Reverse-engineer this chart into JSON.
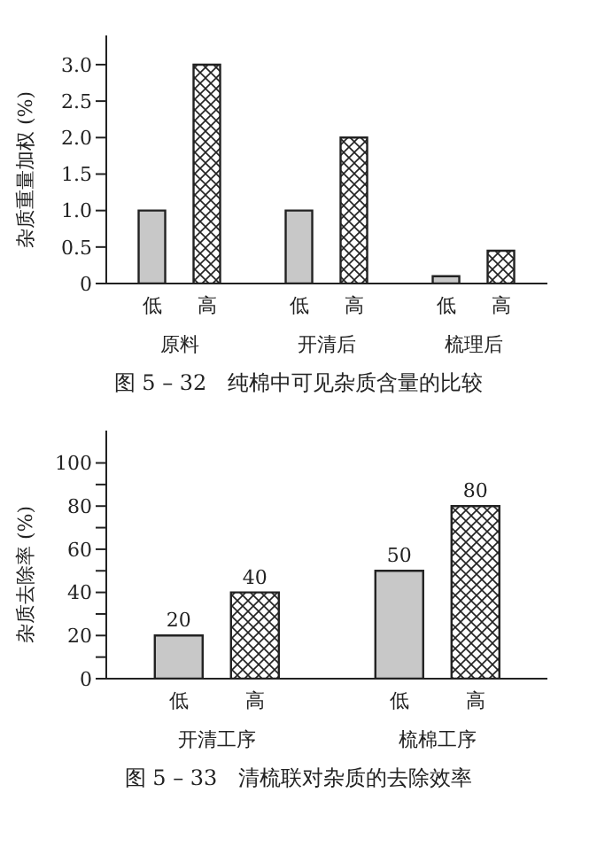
{
  "chart_data": [
    {
      "type": "bar",
      "title": "图 5 – 32　纯棉中可见杂质含量的比较",
      "ylabel": "杂质重量加权 (%)",
      "categories": [
        "原料",
        "开清后",
        "梳理后"
      ],
      "series": [
        {
          "name": "低",
          "color": "#c8c8c8",
          "values": [
            1.0,
            1.0,
            0.1
          ]
        },
        {
          "name": "高",
          "color": "#222222",
          "values": [
            3.0,
            2.0,
            0.45
          ]
        }
      ],
      "ylim": [
        0,
        3.4
      ],
      "yticks": [
        0,
        {
          "value": 0.5,
          "label": "0.5"
        },
        {
          "value": 1,
          "label": "1.0"
        },
        {
          "value": 1.5,
          "label": "1.5"
        },
        {
          "value": 2,
          "label": "2.0"
        },
        {
          "value": 2.5,
          "label": "2.5"
        },
        {
          "value": 3,
          "label": "3.0"
        }
      ]
    },
    {
      "type": "bar",
      "title": "图 5 – 33　清梳联对杂质的去除效率",
      "ylabel": "杂质去除率 (%)",
      "categories": [
        "开清工序",
        "梳棉工序"
      ],
      "series": [
        {
          "name": "低",
          "color": "#c8c8c8",
          "values": [
            20,
            50
          ]
        },
        {
          "name": "高",
          "color": "#222222",
          "values": [
            40,
            80
          ]
        }
      ],
      "ylim": [
        0,
        115
      ],
      "yticks": [
        0,
        {
          "value": 10,
          "label": null
        },
        20,
        {
          "value": 30,
          "label": null
        },
        40,
        {
          "value": 50,
          "label": null
        },
        60,
        {
          "value": 70,
          "label": null
        },
        80,
        {
          "value": 90,
          "label": null
        },
        100
      ],
      "data_labels": true
    }
  ]
}
